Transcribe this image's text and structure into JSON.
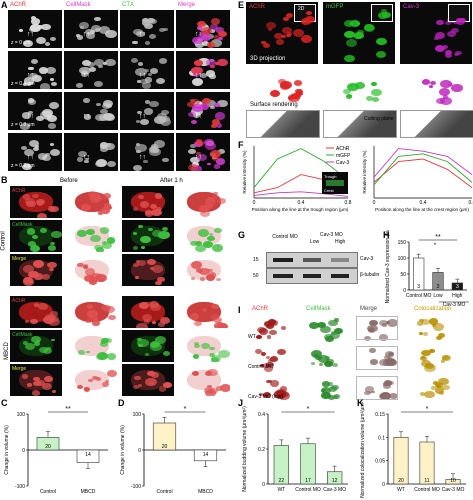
{
  "panels": {
    "A": {
      "letter": "A",
      "channels": [
        "AChR",
        "CellMask",
        "CTX",
        "Merge"
      ],
      "z_levels": [
        "z = 0 µm",
        "z = 0.4 µm",
        "z = 0.8 µm",
        "z = 0.8 µm"
      ]
    },
    "B": {
      "letter": "B",
      "time_before": "Before",
      "time_after": "After 1 h",
      "group_control": "Control",
      "group_mbcd": "MBCD",
      "row_achr": "AChR",
      "row_cellmask": "CellMask",
      "row_merge": "Merge"
    },
    "C": {
      "letter": "C",
      "ylabel": "Change in volume (%)",
      "significance": "**"
    },
    "D": {
      "letter": "D",
      "ylabel": "Change in volume (%)",
      "significance": "*"
    },
    "E": {
      "letter": "E",
      "channels": [
        "AChR",
        "mGFP",
        "Cav-3"
      ],
      "inset_2d": "2D",
      "projection": "3D projection",
      "surface": "Surface rendering",
      "cutting": "Cutting plane"
    },
    "F": {
      "letter": "F",
      "ylabel": "Relative intensity (%)",
      "xlabel_left": "Position along the line at the trough region (µm)",
      "xlabel_right": "Position along the line at the crest region (µm)",
      "legend": [
        "AChR",
        "mGFP",
        "Cav-3"
      ],
      "inset_trough": "Trough",
      "inset_crest": "Crest"
    },
    "G": {
      "letter": "G",
      "col_control": "Control MO",
      "col_cav3": "Cav-3 MO",
      "col_low": "Low",
      "col_high": "High",
      "mw1": "15",
      "mw2": "50",
      "band1": "Cav-3",
      "band2": "β-tubulin"
    },
    "H": {
      "letter": "H",
      "ylabel": "Normalized Cav-3 expression (%)",
      "sig1": "*",
      "sig2": "**",
      "group_label": "Cav-3 MO"
    },
    "I": {
      "letter": "I",
      "cols": [
        "AChR",
        "CellMask",
        "Merge",
        "Colocalization"
      ],
      "rows": [
        "WT",
        "Control MO",
        "Cav-3 MO (low)"
      ]
    },
    "J": {
      "letter": "J",
      "ylabel": "Normalized budding volume (µm³/µm²)",
      "sig": "*"
    },
    "K": {
      "letter": "K",
      "ylabel": "Normalized colocalization volume (µm³/µm²)",
      "sig": "*"
    }
  },
  "chart_data": [
    {
      "panel": "C",
      "type": "bar",
      "categories": [
        "Control",
        "MBCD"
      ],
      "values": [
        35,
        -35
      ],
      "n": [
        "20",
        "14"
      ],
      "colors": [
        "#c6f2c6",
        "#ffffff"
      ],
      "ylim": [
        -100,
        100
      ],
      "yticks": [
        "100",
        "0",
        "-100"
      ],
      "ylabel": "Change in volume (%)"
    },
    {
      "panel": "D",
      "type": "bar",
      "categories": [
        "Control",
        "MBCD"
      ],
      "values": [
        75,
        -30
      ],
      "n": [
        "20",
        "14"
      ],
      "colors": [
        "#fff2c6",
        "#ffffff"
      ],
      "ylim": [
        -100,
        100
      ],
      "yticks": [
        "100",
        "0",
        "-100"
      ],
      "ylabel": "Change in volume (%)"
    },
    {
      "panel": "F-left",
      "type": "line",
      "x": [
        0,
        0.2,
        0.4,
        0.6,
        0.8
      ],
      "xticks": [
        "0",
        "0.4",
        "0.8"
      ],
      "series": [
        {
          "name": "AChR",
          "color": "#e23b3b",
          "values": [
            10,
            20,
            45,
            35,
            10
          ]
        },
        {
          "name": "mGFP",
          "color": "#2fa82f",
          "values": [
            20,
            75,
            95,
            70,
            35
          ]
        },
        {
          "name": "Cav-3",
          "color": "#c23bc2",
          "values": [
            5,
            10,
            12,
            8,
            3
          ]
        }
      ],
      "ylim": [
        0,
        100
      ]
    },
    {
      "panel": "F-right",
      "type": "line",
      "x": [
        0,
        0.2,
        0.4,
        0.6,
        0.8
      ],
      "xticks": [
        "0",
        "0.4",
        "0.8"
      ],
      "series": [
        {
          "name": "AChR",
          "color": "#e23b3b",
          "values": [
            30,
            70,
            75,
            55,
            20
          ]
        },
        {
          "name": "mGFP",
          "color": "#2fa82f",
          "values": [
            25,
            80,
            85,
            70,
            30
          ]
        },
        {
          "name": "Cav-3",
          "color": "#c23bc2",
          "values": [
            40,
            95,
            90,
            80,
            45
          ]
        }
      ],
      "ylim": [
        0,
        100
      ]
    },
    {
      "panel": "H",
      "type": "bar",
      "categories": [
        "Control MO",
        "Low",
        "High"
      ],
      "values": [
        100,
        55,
        22
      ],
      "n": [
        "3",
        "3",
        "3"
      ],
      "colors": [
        "#ffffff",
        "#8c8c8c",
        "#1a1a1a"
      ],
      "ylim": [
        0,
        150
      ],
      "yticks": [
        "150",
        "100",
        "50",
        "0"
      ]
    },
    {
      "panel": "J",
      "type": "bar",
      "categories": [
        "WT",
        "Control MO",
        "Cav-3 MO"
      ],
      "values": [
        0.22,
        0.23,
        0.07
      ],
      "n": [
        "22",
        "17",
        "12"
      ],
      "colors": [
        "#c6f2c6",
        "#c6f2c6",
        "#c6f2c6"
      ],
      "ylim": [
        0,
        0.4
      ],
      "yticks": [
        "0.4",
        "0.2",
        "0"
      ]
    },
    {
      "panel": "K",
      "type": "bar",
      "categories": [
        "WT",
        "Control MO",
        "Cav-3 MO"
      ],
      "values": [
        0.1,
        0.09,
        0.01
      ],
      "n": [
        "20",
        "11",
        "10"
      ],
      "colors": [
        "#fff2c6",
        "#fff2c6",
        "#fff2c6"
      ],
      "ylim": [
        0,
        0.15
      ],
      "yticks": [
        "0.15",
        "0.1",
        "0.05",
        "0"
      ]
    }
  ]
}
